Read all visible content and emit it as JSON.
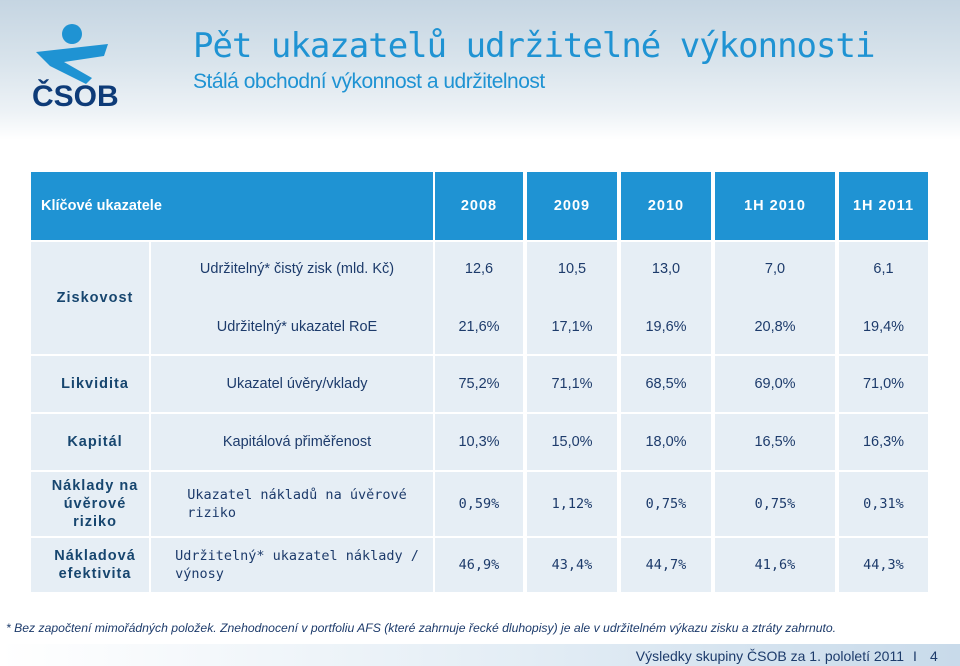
{
  "header": {
    "title": "Pět ukazatelů udržitelné výkonnosti",
    "subtitle": "Stálá obchodní výkonnost a udržitelnost",
    "logo_text": "ČSOB",
    "logo_icon": "csob-person-logo"
  },
  "table": {
    "header_label": "Klíčové ukazatele",
    "years": [
      "2008",
      "2009",
      "2010",
      "1H 2010",
      "1H 2011"
    ],
    "groups": [
      {
        "label": [
          "Ziskovost"
        ],
        "rows": [
          {
            "desc": [
              "Udržitelný* čistý zisk (mld. Kč)"
            ],
            "values": [
              "12,6",
              "10,5",
              "13,0",
              "7,0",
              "6,1"
            ]
          },
          {
            "desc": [
              "Udržitelný* ukazatel RoE"
            ],
            "values": [
              "21,6%",
              "17,1%",
              "19,6%",
              "20,8%",
              "19,4%"
            ]
          }
        ]
      },
      {
        "label": [
          "Likvidita"
        ],
        "rows": [
          {
            "desc": [
              "Ukazatel úvěry/vklady"
            ],
            "values": [
              "75,2%",
              "71,1%",
              "68,5%",
              "69,0%",
              "71,0%"
            ]
          }
        ]
      },
      {
        "label": [
          "Kapitál"
        ],
        "rows": [
          {
            "desc": [
              "Kapitálová přiměřenost"
            ],
            "values": [
              "10,3%",
              "15,0%",
              "18,0%",
              "16,5%",
              "16,3%"
            ]
          }
        ]
      },
      {
        "label": [
          "Náklady na",
          "úvěrové",
          "riziko"
        ],
        "rows": [
          {
            "desc": [
              "Ukazatel nákladů na úvěrové",
              "riziko"
            ],
            "values": [
              "0,59%",
              "1,12%",
              "0,75%",
              "0,75%",
              "0,31%"
            ]
          }
        ]
      },
      {
        "label": [
          "Nákladová",
          "efektivita"
        ],
        "rows": [
          {
            "desc": [
              "Udržitelný* ukazatel náklady /",
              "výnosy"
            ],
            "values": [
              "46,9%",
              "43,4%",
              "44,7%",
              "41,6%",
              "44,3%"
            ]
          }
        ]
      }
    ]
  },
  "footnote": "* Bez započtení mimořádných položek. Znehodnocení v portfoliu AFS (které zahrnuje řecké dluhopisy) je ale v udržitelném výkazu zisku a ztráty zahrnuto.",
  "footer": {
    "text": "Výsledky skupiny ČSOB za 1. pololetí 2011",
    "separator": "I",
    "page": "4"
  },
  "colors": {
    "accent": "#1f93d3",
    "cell_bg": "#e6eef5",
    "text": "#1d3b6b",
    "logo_dark": "#0e3b78"
  }
}
